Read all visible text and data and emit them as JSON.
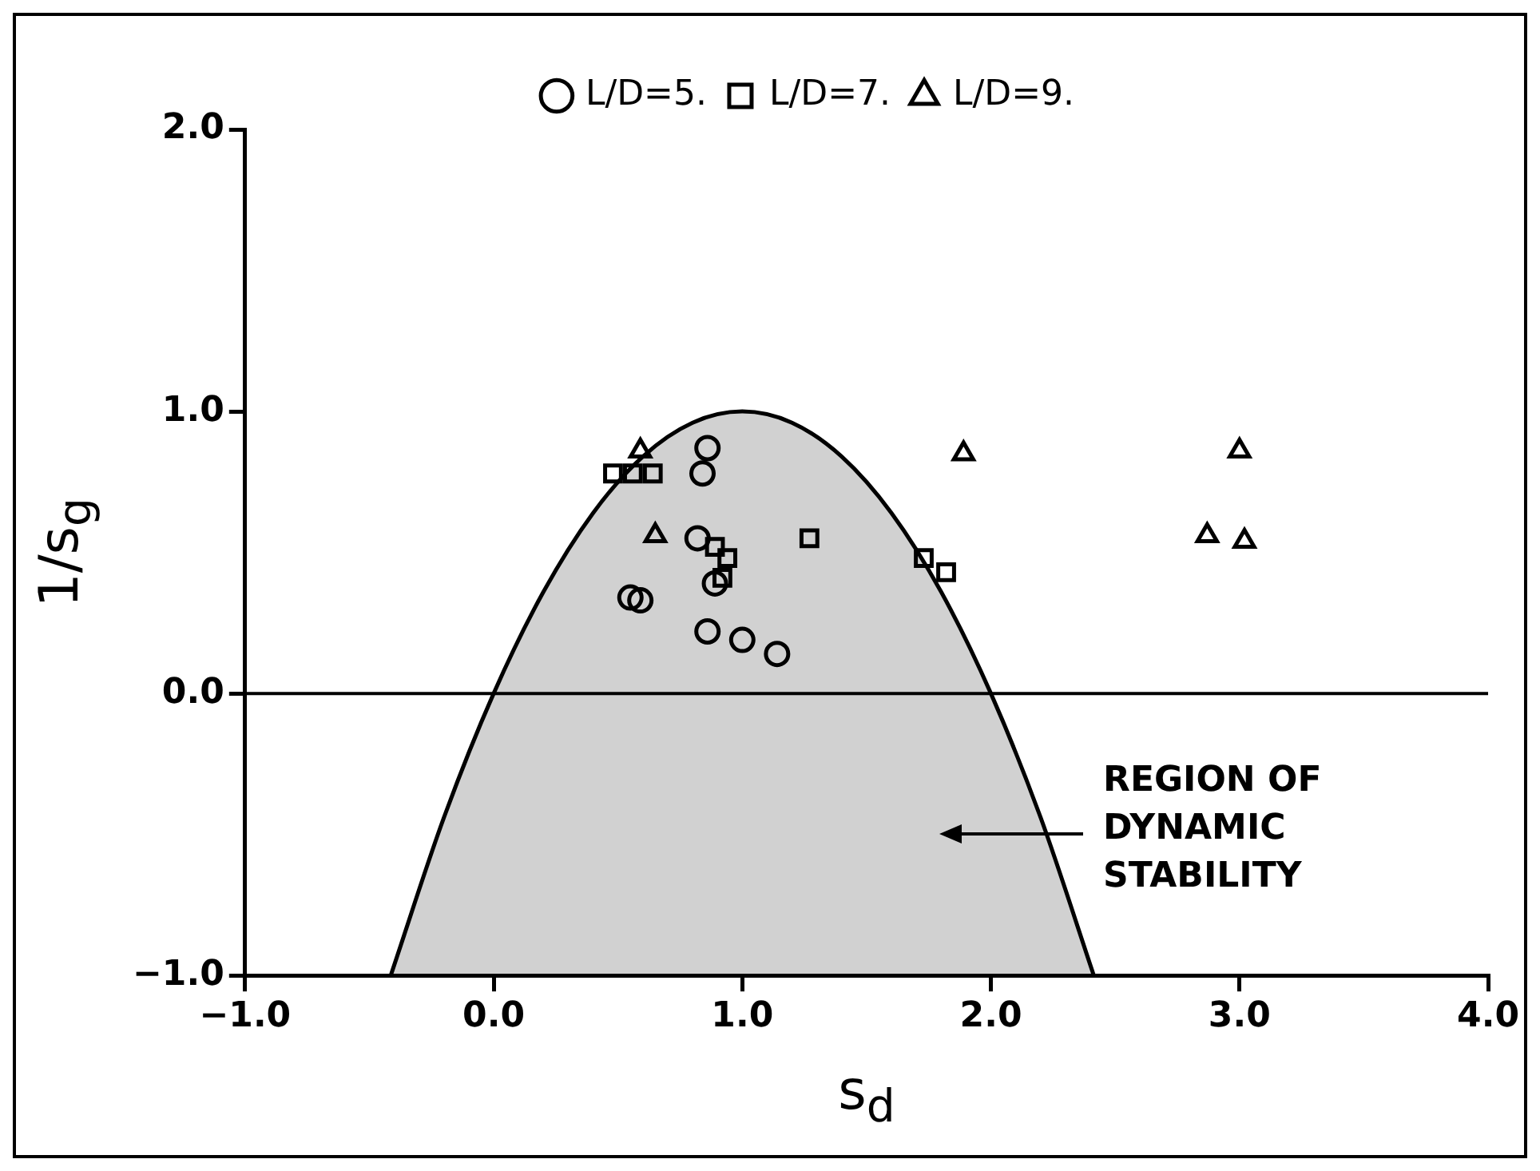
{
  "chart_data": {
    "type": "scatter",
    "xlabel": "s$_{d}$",
    "ylabel": "1/s$_{g}$",
    "xlim": [
      -1,
      4
    ],
    "xticks": [
      {
        "value": -1,
        "label": "−1.0"
      },
      {
        "value": 0,
        "label": "0.0"
      },
      {
        "value": 1,
        "label": "1.0"
      },
      {
        "value": 2,
        "label": "2.0"
      },
      {
        "value": 3,
        "label": "3.0"
      },
      {
        "value": 4,
        "label": "4.0"
      }
    ],
    "ylim": [
      -1,
      2
    ],
    "yticks": [
      {
        "value": -1,
        "label": "−1.0"
      },
      {
        "value": 0,
        "label": "0.0"
      },
      {
        "value": 1,
        "label": "1.0"
      },
      {
        "value": 2,
        "label": "2.0"
      }
    ],
    "grid": false,
    "legend": "top",
    "ref_lines": [
      {
        "axis": "y",
        "value": 0,
        "color": "#000000"
      }
    ],
    "annotations": [
      "REGION OF\nDYNAMIC\nSTABILITY"
    ],
    "series": [
      {
        "type": "area",
        "color": "#000000",
        "x": [
          -0.414,
          -0.2,
          0,
          0.2,
          0.4,
          0.6,
          0.8,
          1,
          1.2,
          1.4,
          1.6,
          1.8,
          2,
          2.2,
          2.414
        ],
        "values": [
          -1,
          -0.44,
          0,
          0.36,
          0.64,
          0.84,
          0.96,
          1,
          0.96,
          0.84,
          0.64,
          0.36,
          0,
          -0.44,
          -1
        ]
      },
      {
        "name": "L/D=5.",
        "color": "#000000",
        "marker": "circle",
        "x": [
          0.86,
          0.84,
          0.82,
          0.89,
          0.55,
          0.59,
          0.86,
          1.0,
          1.14
        ],
        "values": [
          0.87,
          0.78,
          0.55,
          0.39,
          0.34,
          0.33,
          0.22,
          0.19,
          0.14
        ]
      },
      {
        "name": "L/D=7.",
        "color": "#000000",
        "marker": "square",
        "x": [
          0.48,
          0.56,
          0.64,
          0.89,
          0.94,
          0.92,
          1.27,
          1.73,
          1.82
        ],
        "values": [
          0.78,
          0.78,
          0.78,
          0.52,
          0.48,
          0.41,
          0.55,
          0.48,
          0.43
        ]
      },
      {
        "name": "L/D=9.",
        "color": "#000000",
        "marker": "triangle",
        "x": [
          0.59,
          0.65,
          1.89,
          3.0,
          2.87,
          3.02
        ],
        "values": [
          0.86,
          0.56,
          0.85,
          0.86,
          0.56,
          0.54
        ]
      }
    ]
  }
}
